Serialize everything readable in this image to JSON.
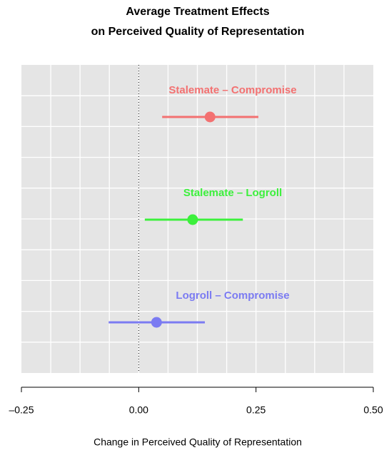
{
  "chart_data": {
    "type": "dotwhisker",
    "title": "Average Treatment Effects",
    "subtitle": "on Perceived Quality of Representation",
    "xlabel": "Change in Perceived Quality of Representation",
    "categories": [
      "Stalemate – Compromise",
      "Stalemate – Logroll",
      "Logroll – Compromise"
    ],
    "values": [
      0.152,
      0.115,
      0.038
    ],
    "lower": [
      0.05,
      0.013,
      -0.064
    ],
    "upper": [
      0.255,
      0.222,
      0.141
    ],
    "colors": [
      "#f37171",
      "#3cf03c",
      "#7b7bf2"
    ],
    "xlim": [
      -0.25,
      0.5
    ],
    "xticks": [
      {
        "value": -0.25,
        "label": "–0.25"
      },
      {
        "value": 0,
        "label": "0.00"
      },
      0.25,
      {
        "value": 0.5,
        "label": "0.50"
      }
    ],
    "reference_line": 0,
    "grid": true
  }
}
